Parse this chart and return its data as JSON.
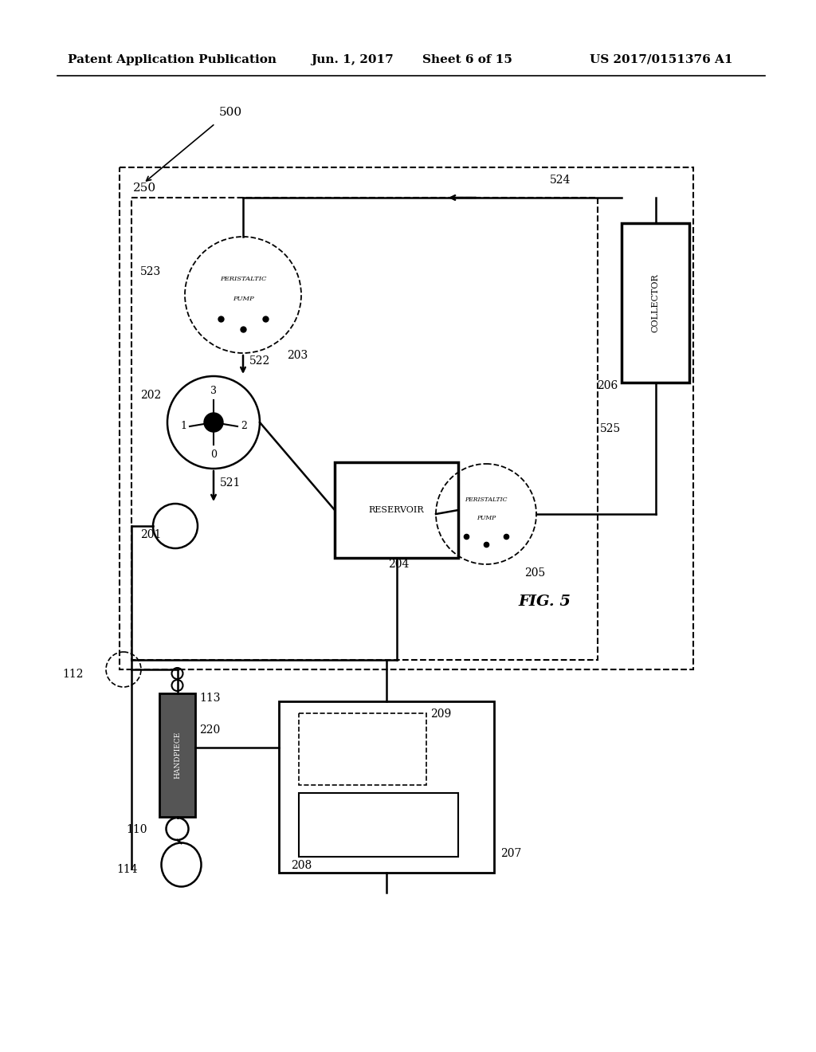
{
  "bg_color": "#ffffff",
  "header_text": "Patent Application Publication",
  "header_date": "Jun. 1, 2017",
  "header_sheet": "Sheet 6 of 15",
  "header_patent": "US 2017/0151376 A1",
  "fig_label": "FIG. 5"
}
